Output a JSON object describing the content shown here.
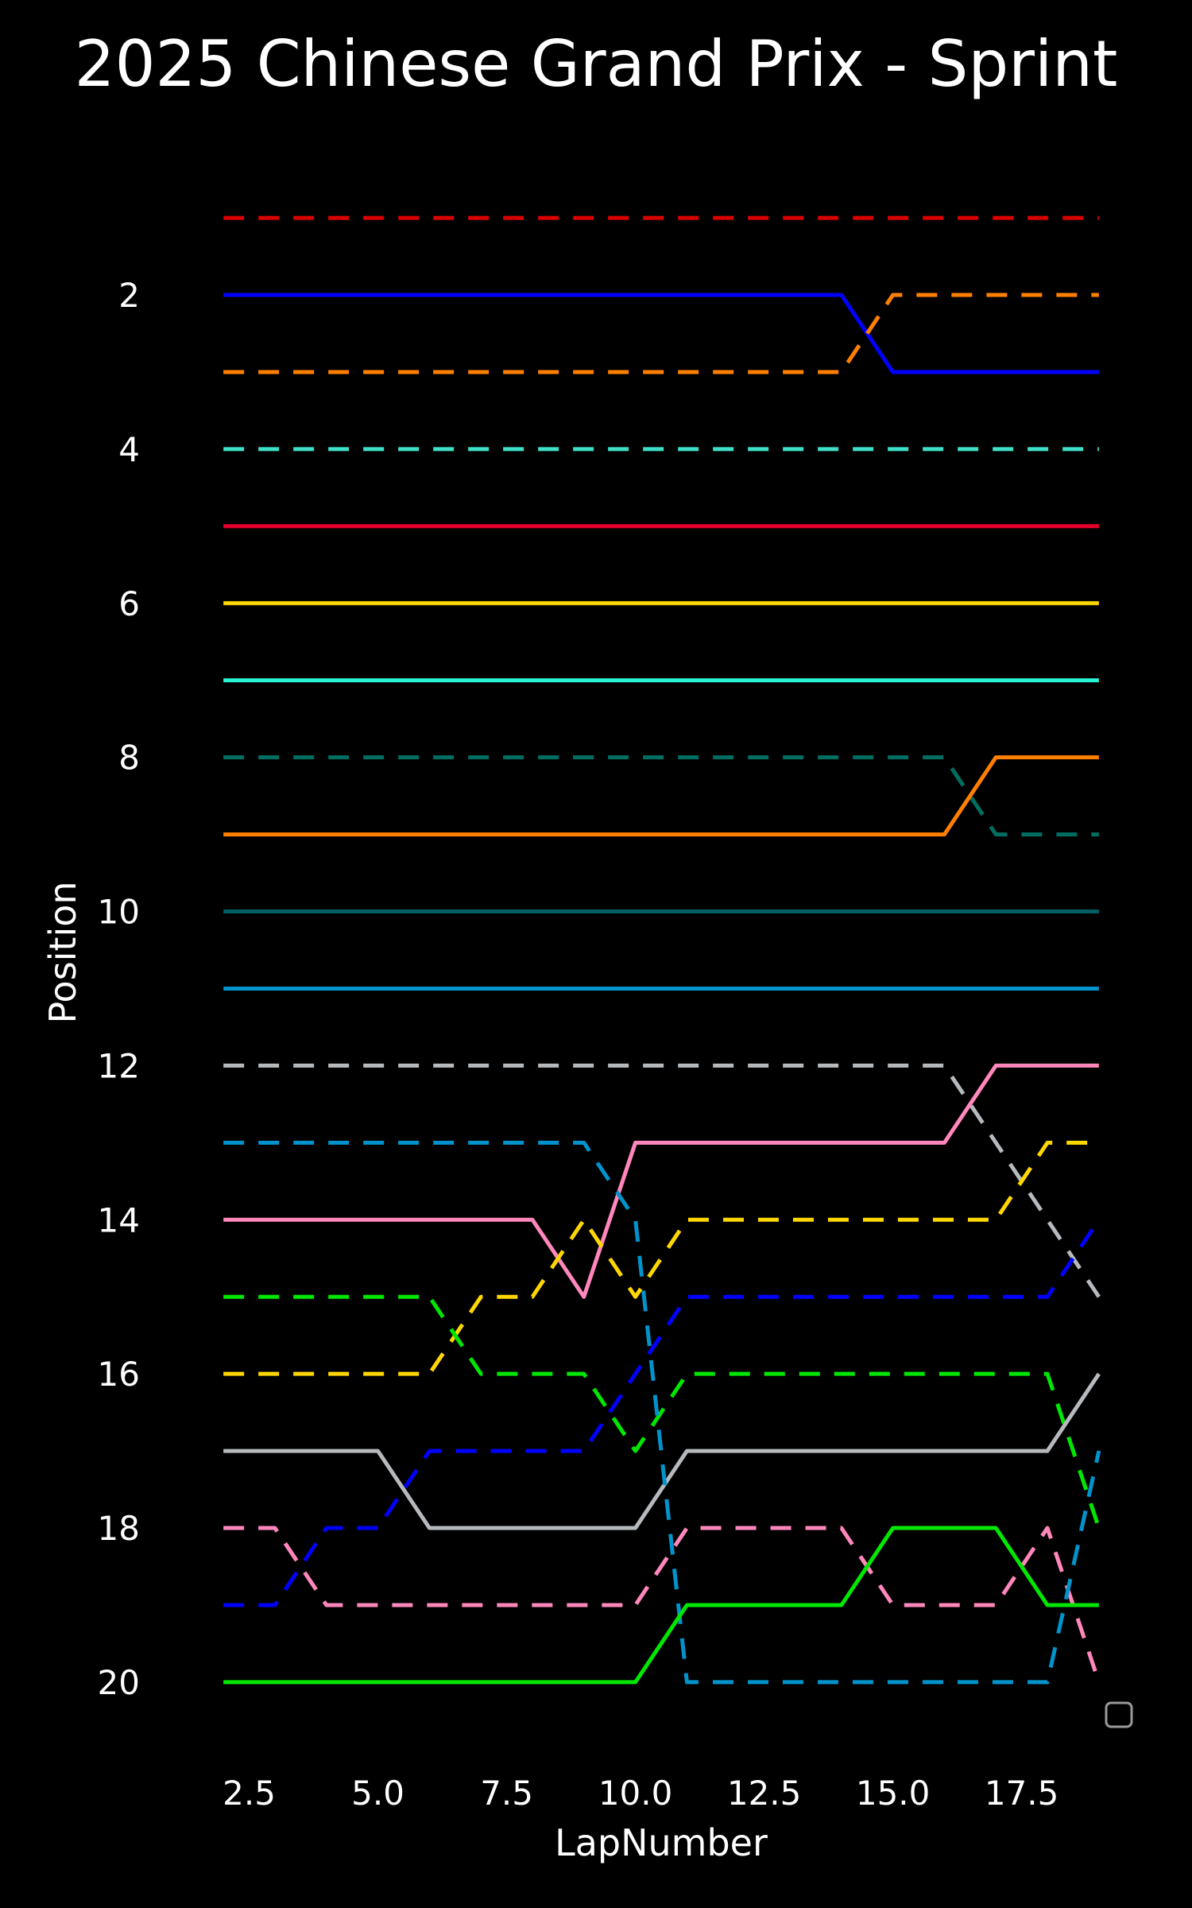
{
  "chart_data": {
    "type": "line",
    "title": "2025 Chinese Grand Prix - Sprint",
    "xlabel": "LapNumber",
    "ylabel": "Position",
    "xlim": [
      1.55,
      19.45
    ],
    "ylim": [
      20.95,
      0.05
    ],
    "x_ticks": [
      "2.5",
      "5.0",
      "7.5",
      "10.0",
      "12.5",
      "15.0",
      "17.5"
    ],
    "y_ticks": [
      "2",
      "4",
      "6",
      "8",
      "10",
      "12",
      "14",
      "16",
      "18",
      "20"
    ],
    "grid": false,
    "legend": "lower-right (empty box)",
    "background": "#000000",
    "series": [
      {
        "color": "#dc0000",
        "style": "dashed",
        "x": [
          2,
          19
        ],
        "y": [
          1,
          1
        ]
      },
      {
        "color": "#0000ff",
        "style": "solid",
        "x": [
          2,
          14,
          15,
          19
        ],
        "y": [
          2,
          2,
          3,
          3
        ]
      },
      {
        "color": "#ff8000",
        "style": "dashed",
        "x": [
          2,
          14,
          15,
          19
        ],
        "y": [
          3,
          3,
          2,
          2
        ]
      },
      {
        "color": "#40e0c8",
        "style": "dashed",
        "x": [
          2,
          19
        ],
        "y": [
          4,
          4
        ]
      },
      {
        "color": "#e8002d",
        "style": "solid",
        "x": [
          2,
          19
        ],
        "y": [
          5,
          5
        ]
      },
      {
        "color": "#ffd700",
        "style": "solid",
        "x": [
          2,
          19
        ],
        "y": [
          6,
          6
        ]
      },
      {
        "color": "#27f4d2",
        "style": "solid",
        "x": [
          2,
          19
        ],
        "y": [
          7,
          7
        ]
      },
      {
        "color": "#006f62",
        "style": "dashed",
        "x": [
          2,
          16,
          17,
          19
        ],
        "y": [
          8,
          8,
          9,
          9
        ]
      },
      {
        "color": "#ff8000",
        "style": "solid",
        "x": [
          2,
          16,
          17,
          19
        ],
        "y": [
          9,
          9,
          8,
          8
        ]
      },
      {
        "color": "#005f64",
        "style": "solid",
        "x": [
          2,
          19
        ],
        "y": [
          10,
          10
        ]
      },
      {
        "color": "#0093cc",
        "style": "solid",
        "x": [
          2,
          19
        ],
        "y": [
          11,
          11
        ]
      },
      {
        "color": "#b6babd",
        "style": "dashed",
        "x": [
          2,
          16,
          19
        ],
        "y": [
          12,
          12,
          15
        ]
      },
      {
        "color": "#ff87bc",
        "style": "solid",
        "x": [
          2,
          8,
          9,
          10,
          16,
          17,
          19
        ],
        "y": [
          14,
          14,
          15,
          13,
          13,
          12,
          12
        ]
      },
      {
        "color": "#ffd700",
        "style": "dashed",
        "x": [
          2,
          6,
          7,
          8,
          9,
          10,
          11,
          17,
          18,
          19
        ],
        "y": [
          16,
          16,
          15,
          15,
          14,
          15,
          14,
          14,
          13,
          13
        ]
      },
      {
        "color": "#00e701",
        "style": "dashed",
        "x": [
          2,
          6,
          7,
          9,
          10,
          11,
          18,
          19
        ],
        "y": [
          15,
          15,
          16,
          16,
          17,
          16,
          16,
          18
        ]
      },
      {
        "color": "#0000ff",
        "style": "dashed",
        "x": [
          2,
          3,
          4,
          5,
          6,
          9,
          11,
          18,
          19
        ],
        "y": [
          19,
          19,
          18,
          18,
          17,
          17,
          15,
          15,
          14
        ]
      },
      {
        "color": "#b6babd",
        "style": "solid",
        "x": [
          2,
          5,
          6,
          10,
          11,
          18,
          19
        ],
        "y": [
          17,
          17,
          18,
          18,
          17,
          17,
          16
        ]
      },
      {
        "color": "#ff87bc",
        "style": "dashed",
        "x": [
          2,
          3,
          4,
          10,
          11,
          14,
          15,
          17,
          18,
          19
        ],
        "y": [
          18,
          18,
          19,
          19,
          18,
          18,
          19,
          19,
          18,
          20
        ]
      },
      {
        "color": "#0093cc",
        "style": "dashed",
        "x": [
          2,
          9,
          10,
          11,
          18,
          19
        ],
        "y": [
          13,
          13,
          14,
          20,
          20,
          17
        ]
      },
      {
        "color": "#00e701",
        "style": "solid",
        "x": [
          2,
          10,
          11,
          14,
          15,
          17,
          18,
          19
        ],
        "y": [
          20,
          20,
          19,
          19,
          18,
          18,
          19,
          19
        ]
      }
    ]
  }
}
